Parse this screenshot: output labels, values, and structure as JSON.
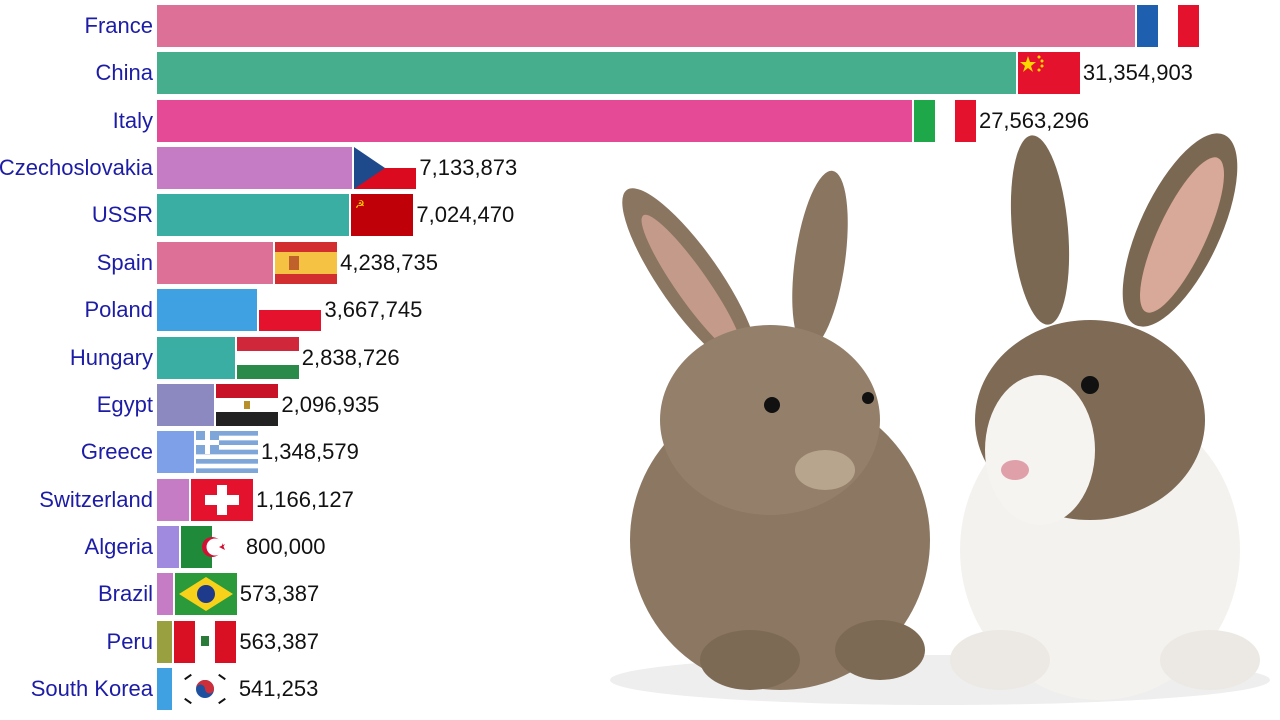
{
  "chart_data": {
    "type": "bar",
    "orientation": "horizontal",
    "xlim": [
      0,
      41000000
    ],
    "grid": false,
    "categories": [
      "France",
      "China",
      "Italy",
      "Czechoslovakia",
      "USSR",
      "Spain",
      "Poland",
      "Hungary",
      "Egypt",
      "Greece",
      "Switzerland",
      "Algeria",
      "Brazil",
      "Peru",
      "South Korea"
    ],
    "values": [
      35700000,
      31354903,
      27563296,
      7133873,
      7024470,
      4238735,
      3667745,
      2838726,
      2096935,
      1348579,
      1166127,
      800000,
      573387,
      563387,
      541253
    ],
    "value_labels": [
      "",
      "31,354,903",
      "27,563,296",
      "7,133,873",
      "7,024,470",
      "4,238,735",
      "3,667,745",
      "2,838,726",
      "2,096,935",
      "1,348,579",
      "1,166,127",
      "800,000",
      "573,387",
      "563,387",
      "541,253"
    ],
    "colors": [
      "#dc7096",
      "#46ae8c",
      "#e44a96",
      "#c57cc4",
      "#3aaea2",
      "#dc7096",
      "#3fa0e2",
      "#3aaea2",
      "#8c88c0",
      "#7ea0e8",
      "#c57cc4",
      "#a08ae0",
      "#c57cc4",
      "#98a040",
      "#3fa0e2"
    ],
    "flags": [
      "fr",
      "cn",
      "it",
      "cs",
      "su",
      "es",
      "pl",
      "hu",
      "eg",
      "gr",
      "ch",
      "dz",
      "br",
      "pe",
      "kr"
    ],
    "label_color": "#1c1ca6"
  }
}
